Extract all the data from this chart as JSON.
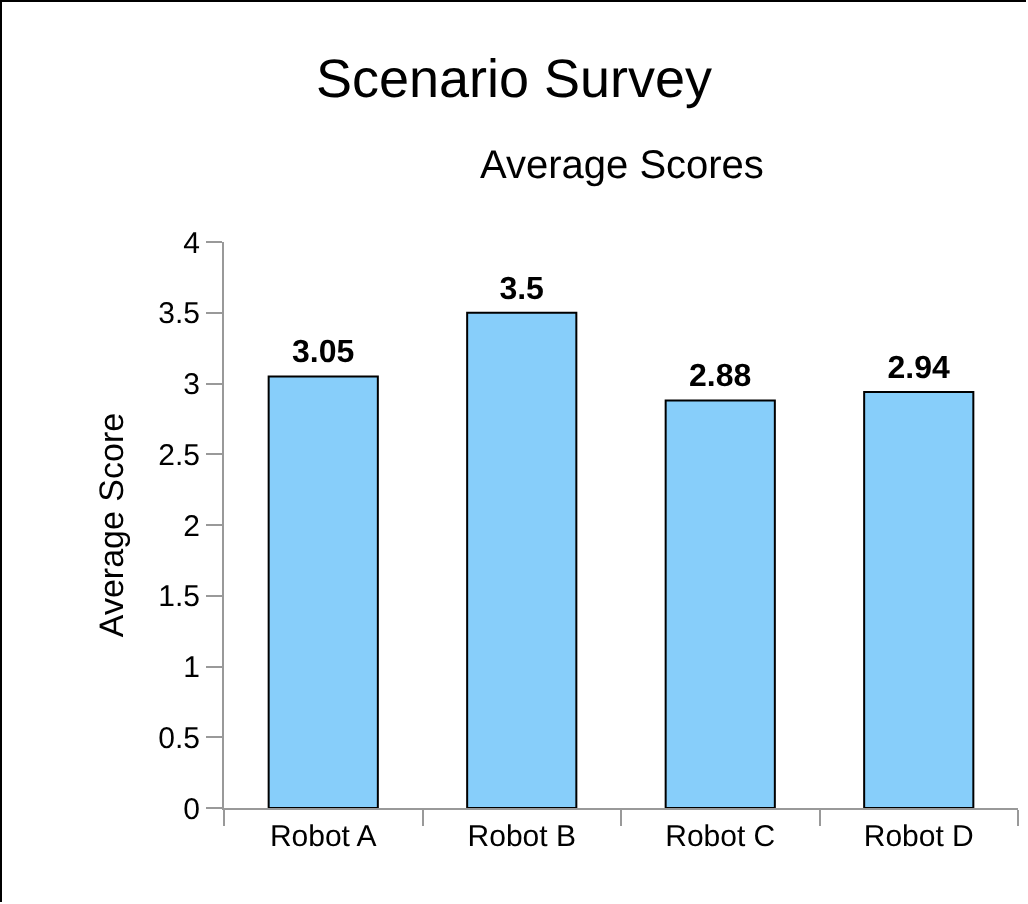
{
  "chart_data": {
    "type": "bar",
    "title": "Scenario Survey",
    "subtitle": "Average Scores",
    "ylabel": "Average Score",
    "categories": [
      "Robot A",
      "Robot B",
      "Robot C",
      "Robot D"
    ],
    "values": [
      3.05,
      3.5,
      2.88,
      2.94
    ],
    "color": "#87cefa",
    "ylim": [
      0,
      4
    ],
    "yticks": [
      0,
      0.5,
      1,
      1.5,
      2,
      2.5,
      3,
      3.5,
      4
    ],
    "grid": false,
    "legend": false,
    "data_labels": true
  }
}
